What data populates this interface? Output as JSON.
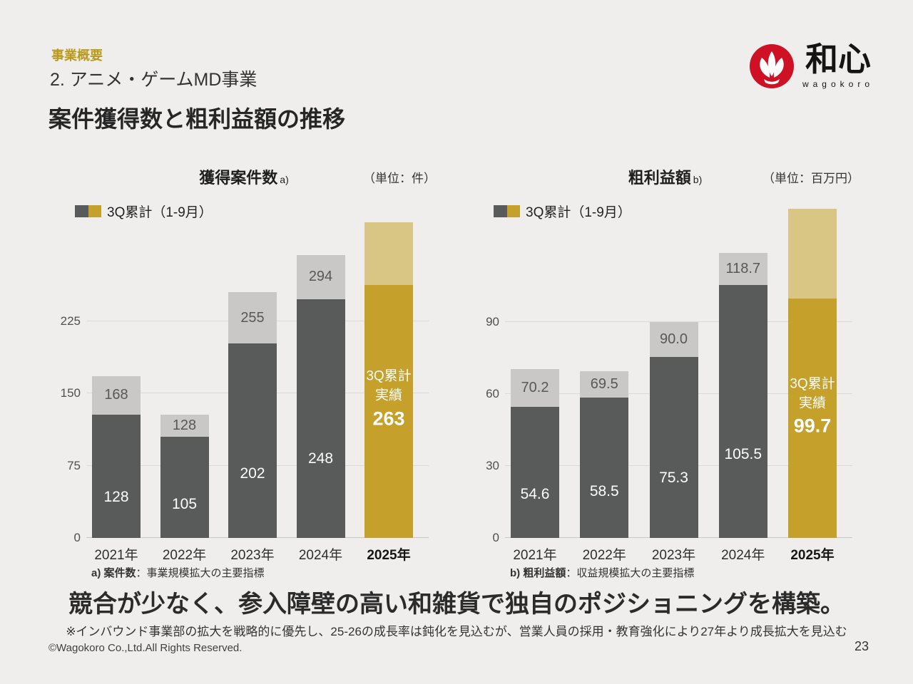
{
  "page": {
    "eyebrow": "事業概要",
    "section_title": "2. アニメ・ゲームMD事業",
    "title": "案件獲得数と粗利益額の推移",
    "headline": "競合が少なく、参入障壁の高い和雑貨で独自のポジショニングを構築。",
    "footnote": "※インバウンド事業部の拡大を戦略的に優先し、25-26の成長率は鈍化を見込むが、営業人員の採用・教育強化により27年より成長拡大を見込む",
    "copyright": "©Wagokoro Co.,Ltd.All Rights Reserved.",
    "page_number": "23"
  },
  "logo": {
    "brand_name": "和心",
    "brand_roman": "wagokoro"
  },
  "colors": {
    "background": "#EFEEEC",
    "eyebrow_gold": "#B99A1C",
    "accent_gold": "#C5A02A",
    "accent_gold_light": "#D9C584",
    "bar_dark": "#595A5A",
    "bar_cap_gray": "#C9C8C6",
    "brand_red": "#CF1126"
  },
  "chart_data": [
    {
      "type": "stacked-bar",
      "title": "獲得案件数",
      "title_note": "a)",
      "unit": "（単位：件）",
      "legend_label": "3Q累計（1-9月）",
      "categories": [
        "2021年",
        "2022年",
        "2023年",
        "2024年",
        "2025年"
      ],
      "q3_cumulative": [
        128,
        105,
        202,
        248,
        263
      ],
      "full_year_total": [
        168,
        128,
        255,
        294,
        null
      ],
      "full_year_2025_projection_est": 328,
      "highlight": {
        "line1": "3Q累計",
        "line2": "実績",
        "value": "263"
      },
      "yticks": [
        0,
        75,
        150,
        225
      ],
      "ylim": [
        0,
        344
      ],
      "value_format": "int",
      "footnote_prefix": "a) 案件数",
      "footnote_text": "：事業規模拡大の主要指標"
    },
    {
      "type": "stacked-bar",
      "title": "粗利益額",
      "title_note": "b)",
      "unit": "（単位：百万円）",
      "legend_label": "3Q累計（1-9月）",
      "categories": [
        "2021年",
        "2022年",
        "2023年",
        "2024年",
        "2025年"
      ],
      "q3_cumulative": [
        54.6,
        58.5,
        75.3,
        105.5,
        99.7
      ],
      "full_year_total": [
        70.2,
        69.5,
        90.0,
        118.7,
        null
      ],
      "full_year_2025_projection_est": 137,
      "highlight": {
        "line1": "3Q累計",
        "line2": "実績",
        "value": "99.7"
      },
      "yticks": [
        0,
        30,
        60,
        90
      ],
      "ylim": [
        0,
        138
      ],
      "value_format": "1dp",
      "footnote_prefix": "b) 粗利益額",
      "footnote_text": "：収益規模拡大の主要指標"
    }
  ]
}
